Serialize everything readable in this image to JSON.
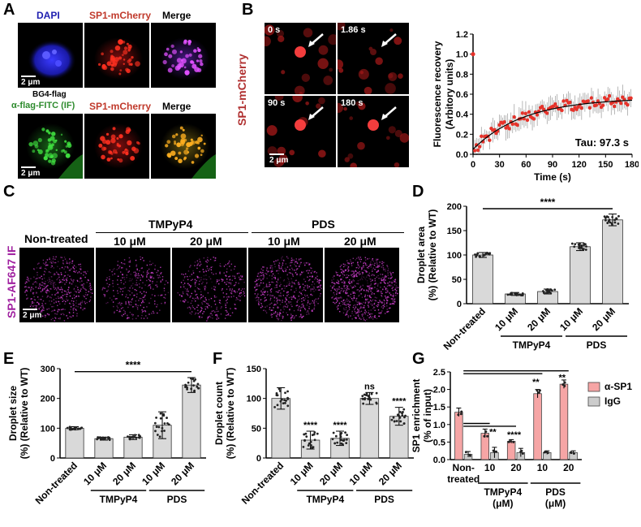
{
  "panels": {
    "A": {
      "letter": "A",
      "row1_labels": [
        "DAPI",
        "SP1-mCherry",
        "Merge"
      ],
      "row2_top": "BG4-flag",
      "row2_labels": [
        "α-flag-FITC (IF)",
        "SP1-mCherry",
        "Merge"
      ],
      "scale": "2 μm",
      "colors": {
        "dapi": "#1a1aa8",
        "mcherry": "#c0392b",
        "fitc": "#2e8b2e"
      }
    },
    "B": {
      "letter": "B",
      "side_label": "SP1-mCherry",
      "times": [
        "0 s",
        "1.86 s",
        "90 s",
        "180 s"
      ],
      "scale": "2 μm"
    },
    "C": {
      "letter": "C",
      "groups": [
        "TMPyP4",
        "PDS"
      ],
      "conditions": [
        "Non-treated",
        "10 μM",
        "20 μM",
        "10 μM",
        "20 μM"
      ],
      "side_label": "SP1-AF647 IF",
      "scale": "2 μm"
    },
    "D": {
      "letter": "D"
    },
    "E": {
      "letter": "E"
    },
    "F": {
      "letter": "F"
    },
    "G": {
      "letter": "G"
    }
  },
  "chart_data": [
    {
      "id": "B",
      "type": "scatter",
      "ylabel": "Fluorescence recovery (Arbitory units)",
      "xlabel": "Time (s)",
      "xlim": [
        0,
        180
      ],
      "ylim": [
        0,
        1.2
      ],
      "xticks": [
        0,
        30,
        60,
        90,
        120,
        150,
        180
      ],
      "yticks": [
        0.0,
        0.2,
        0.4,
        0.6,
        0.8,
        1.0,
        1.2
      ],
      "annotation": "Tau: 97.3 s",
      "first_point": [
        0,
        1.0
      ],
      "fit": {
        "plateau": 0.62,
        "start": 0.05,
        "tau": 97.3
      },
      "color": "#e8322a"
    },
    {
      "id": "D",
      "type": "bar",
      "ylabel": "Droplet area (%) (Relative to WT)",
      "categories": [
        "Non-treated",
        "10 μM",
        "20 μM",
        "10 μM",
        "20 μM"
      ],
      "groups": [
        {
          "label": "TMPyP4",
          "from": 1,
          "to": 2
        },
        {
          "label": "PDS",
          "from": 3,
          "to": 4
        }
      ],
      "values": [
        100,
        20,
        25,
        117,
        172
      ],
      "errors": [
        5,
        3,
        5,
        8,
        12
      ],
      "ylim": [
        0,
        200
      ],
      "yticks": [
        0,
        50,
        100,
        150,
        200
      ],
      "sig": [
        {
          "from": 0,
          "to": 4,
          "y": 195,
          "text": "****"
        }
      ]
    },
    {
      "id": "E",
      "type": "bar",
      "ylabel": "Droplet size (%) (Relative to WT)",
      "categories": [
        "Non-treated",
        "10 μM",
        "20 μM",
        "10 μM",
        "20 μM"
      ],
      "groups": [
        {
          "label": "TMPyP4",
          "from": 1,
          "to": 2
        },
        {
          "label": "PDS",
          "from": 3,
          "to": 4
        }
      ],
      "values": [
        100,
        65,
        70,
        110,
        245
      ],
      "errors": [
        5,
        5,
        8,
        45,
        25
      ],
      "ylim": [
        0,
        300
      ],
      "yticks": [
        0,
        100,
        200,
        300
      ],
      "sig": [
        {
          "from": 0,
          "to": 4,
          "y": 290,
          "text": "****"
        }
      ]
    },
    {
      "id": "F",
      "type": "bar",
      "ylabel": "Droplet count (%) (Relative to WT)",
      "categories": [
        "Non-treated",
        "10 μM",
        "20 μM",
        "10 μM",
        "20 μM"
      ],
      "groups": [
        {
          "label": "TMPyP4",
          "from": 1,
          "to": 2
        },
        {
          "label": "PDS",
          "from": 3,
          "to": 4
        }
      ],
      "values": [
        100,
        30,
        33,
        100,
        70
      ],
      "errors": [
        18,
        15,
        12,
        10,
        15
      ],
      "ylim": [
        0,
        150
      ],
      "yticks": [
        0,
        50,
        100,
        150
      ],
      "labels": [
        "",
        "****",
        "****",
        "ns",
        "****"
      ]
    },
    {
      "id": "G",
      "type": "bar",
      "ylabel": "SP1 enrichment (% of input)",
      "categories": [
        "Non-treated",
        "10",
        "20",
        "10",
        "20"
      ],
      "cat_line1": [
        "Non-",
        "10",
        "20",
        "10",
        "20"
      ],
      "cat_line2": [
        "treated",
        "",
        "",
        "",
        ""
      ],
      "groups": [
        {
          "label": "TMPyP4",
          "sub": "(μM)",
          "from": 1,
          "to": 2
        },
        {
          "label": "PDS",
          "sub": "(μM)",
          "from": 3,
          "to": 4
        }
      ],
      "series": [
        {
          "name": "α-SP1",
          "values": [
            1.35,
            0.75,
            0.52,
            1.88,
            2.15
          ],
          "errors": [
            0.12,
            0.12,
            0.05,
            0.12,
            0.12
          ],
          "color": "#f6a5a5"
        },
        {
          "name": "IgG",
          "values": [
            0.15,
            0.2,
            0.2,
            0.2,
            0.2
          ],
          "errors": [
            0.08,
            0.15,
            0.12,
            0.05,
            0.05
          ],
          "color": "#cccccc"
        }
      ],
      "ylim": [
        0,
        2.5
      ],
      "yticks": [
        0.0,
        0.5,
        1.0,
        1.5,
        2.0,
        2.5
      ],
      "sig_upper": [
        {
          "to": 3,
          "y": 2.45,
          "text": "**"
        },
        {
          "to": 4,
          "y": 2.53,
          "text": "**"
        }
      ],
      "sig_lower": [
        {
          "to": 1,
          "y": 1.03,
          "text": "**"
        },
        {
          "to": 2,
          "y": 0.95,
          "text": "****"
        }
      ]
    }
  ]
}
